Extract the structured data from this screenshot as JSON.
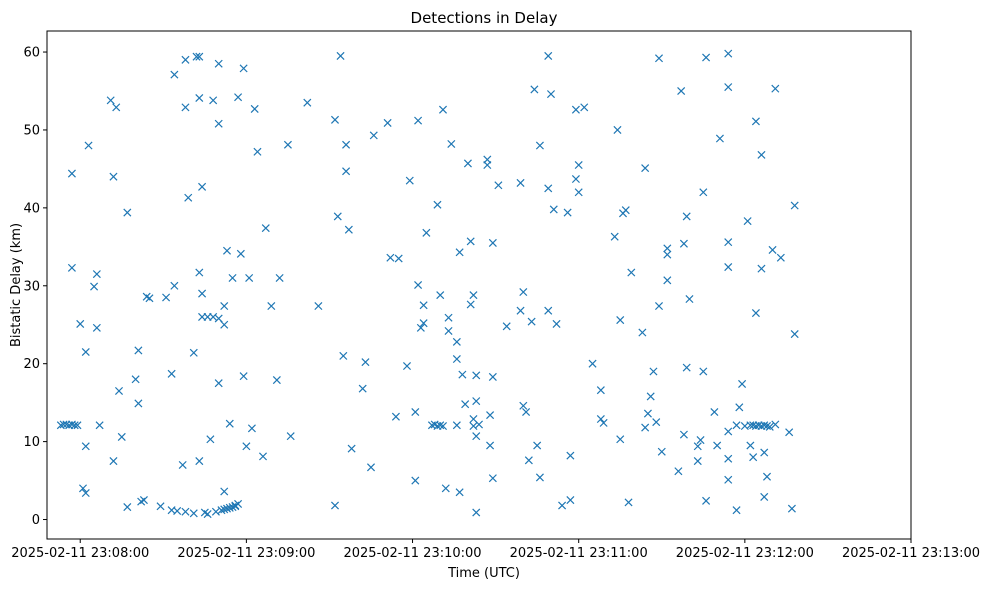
{
  "chart_data": {
    "type": "scatter",
    "title": "Detections in Delay",
    "xlabel": "Time (UTC)",
    "ylabel": "Bistatic Delay (km)",
    "marker": "x",
    "color": "#1f77b4",
    "grid": false,
    "legend": "none",
    "xlim": [
      "2025-02-11 23:07:48",
      "2025-02-11 23:13:00"
    ],
    "ylim": [
      -2.5,
      62.7
    ],
    "xticks": [
      "2025-02-11 23:08:00",
      "2025-02-11 23:09:00",
      "2025-02-11 23:10:00",
      "2025-02-11 23:11:00",
      "2025-02-11 23:12:00",
      "2025-02-11 23:13:00"
    ],
    "yticks": [
      0,
      10,
      20,
      30,
      40,
      50,
      60
    ],
    "points": [
      [
        "2025-02-11 23:07:53",
        12.1
      ],
      [
        "2025-02-11 23:07:54",
        12.2
      ],
      [
        "2025-02-11 23:07:55",
        12.2
      ],
      [
        "2025-02-11 23:07:56",
        12.1
      ],
      [
        "2025-02-11 23:07:57",
        12.2
      ],
      [
        "2025-02-11 23:07:58",
        12.1
      ],
      [
        "2025-02-11 23:07:59",
        12.1
      ],
      [
        "2025-02-11 23:07:57",
        44.4
      ],
      [
        "2025-02-11 23:07:57",
        32.3
      ],
      [
        "2025-02-11 23:08:00",
        25.1
      ],
      [
        "2025-02-11 23:08:01",
        4.0
      ],
      [
        "2025-02-11 23:08:02",
        3.4
      ],
      [
        "2025-02-11 23:08:02",
        21.5
      ],
      [
        "2025-02-11 23:08:02",
        9.4
      ],
      [
        "2025-02-11 23:08:03",
        48.0
      ],
      [
        "2025-02-11 23:08:05",
        29.9
      ],
      [
        "2025-02-11 23:08:06",
        31.5
      ],
      [
        "2025-02-11 23:08:06",
        24.6
      ],
      [
        "2025-02-11 23:08:07",
        12.1
      ],
      [
        "2025-02-11 23:08:11",
        53.8
      ],
      [
        "2025-02-11 23:08:12",
        44.0
      ],
      [
        "2025-02-11 23:08:12",
        7.5
      ],
      [
        "2025-02-11 23:08:13",
        52.9
      ],
      [
        "2025-02-11 23:08:14",
        16.5
      ],
      [
        "2025-02-11 23:08:15",
        10.6
      ],
      [
        "2025-02-11 23:08:17",
        39.4
      ],
      [
        "2025-02-11 23:08:17",
        1.6
      ],
      [
        "2025-02-11 23:08:20",
        18.0
      ],
      [
        "2025-02-11 23:08:21",
        21.7
      ],
      [
        "2025-02-11 23:08:21",
        14.9
      ],
      [
        "2025-02-11 23:08:22",
        2.3
      ],
      [
        "2025-02-11 23:08:23",
        2.5
      ],
      [
        "2025-02-11 23:08:24",
        28.6
      ],
      [
        "2025-02-11 23:08:25",
        28.4
      ],
      [
        "2025-02-11 23:08:29",
        1.7
      ],
      [
        "2025-02-11 23:08:31",
        28.5
      ],
      [
        "2025-02-11 23:08:33",
        1.2
      ],
      [
        "2025-02-11 23:08:33",
        18.7
      ],
      [
        "2025-02-11 23:08:34",
        57.1
      ],
      [
        "2025-02-11 23:08:34",
        30.0
      ],
      [
        "2025-02-11 23:08:35",
        1.1
      ],
      [
        "2025-02-11 23:08:37",
        7.0
      ],
      [
        "2025-02-11 23:08:38",
        1.0
      ],
      [
        "2025-02-11 23:08:38",
        59.0
      ],
      [
        "2025-02-11 23:08:38",
        52.9
      ],
      [
        "2025-02-11 23:08:39",
        41.3
      ],
      [
        "2025-02-11 23:08:41",
        0.8
      ],
      [
        "2025-02-11 23:08:41",
        21.4
      ],
      [
        "2025-02-11 23:08:42",
        59.4
      ],
      [
        "2025-02-11 23:08:43",
        59.4
      ],
      [
        "2025-02-11 23:08:43",
        54.1
      ],
      [
        "2025-02-11 23:08:43",
        31.7
      ],
      [
        "2025-02-11 23:08:43",
        7.5
      ],
      [
        "2025-02-11 23:08:44",
        42.7
      ],
      [
        "2025-02-11 23:08:44",
        26.0
      ],
      [
        "2025-02-11 23:08:44",
        29.0
      ],
      [
        "2025-02-11 23:08:45",
        0.9
      ],
      [
        "2025-02-11 23:08:46",
        26.0
      ],
      [
        "2025-02-11 23:08:46",
        0.7
      ],
      [
        "2025-02-11 23:08:47",
        10.3
      ],
      [
        "2025-02-11 23:08:48",
        26.0
      ],
      [
        "2025-02-11 23:08:48",
        53.8
      ],
      [
        "2025-02-11 23:08:49",
        1.0
      ],
      [
        "2025-02-11 23:08:50",
        58.5
      ],
      [
        "2025-02-11 23:08:50",
        17.5
      ],
      [
        "2025-02-11 23:08:50",
        50.8
      ],
      [
        "2025-02-11 23:08:50",
        25.8
      ],
      [
        "2025-02-11 23:08:51",
        1.2
      ],
      [
        "2025-02-11 23:08:52",
        1.3
      ],
      [
        "2025-02-11 23:08:52",
        27.4
      ],
      [
        "2025-02-11 23:08:52",
        3.6
      ],
      [
        "2025-02-11 23:08:52",
        25.0
      ],
      [
        "2025-02-11 23:08:53",
        1.4
      ],
      [
        "2025-02-11 23:08:53",
        34.5
      ],
      [
        "2025-02-11 23:08:54",
        1.5
      ],
      [
        "2025-02-11 23:08:54",
        12.3
      ],
      [
        "2025-02-11 23:08:55",
        1.6
      ],
      [
        "2025-02-11 23:08:55",
        31.0
      ],
      [
        "2025-02-11 23:08:56",
        1.7
      ],
      [
        "2025-02-11 23:08:56",
        1.8
      ],
      [
        "2025-02-11 23:08:57",
        2.0
      ],
      [
        "2025-02-11 23:08:57",
        54.2
      ],
      [
        "2025-02-11 23:08:58",
        34.1
      ],
      [
        "2025-02-11 23:08:59",
        57.9
      ],
      [
        "2025-02-11 23:08:59",
        18.4
      ],
      [
        "2025-02-11 23:09:00",
        9.4
      ],
      [
        "2025-02-11 23:09:01",
        31.0
      ],
      [
        "2025-02-11 23:09:02",
        11.7
      ],
      [
        "2025-02-11 23:09:03",
        52.7
      ],
      [
        "2025-02-11 23:09:04",
        47.2
      ],
      [
        "2025-02-11 23:09:06",
        8.1
      ],
      [
        "2025-02-11 23:09:07",
        37.4
      ],
      [
        "2025-02-11 23:09:09",
        27.4
      ],
      [
        "2025-02-11 23:09:11",
        17.9
      ],
      [
        "2025-02-11 23:09:12",
        31.0
      ],
      [
        "2025-02-11 23:09:15",
        48.1
      ],
      [
        "2025-02-11 23:09:16",
        10.7
      ],
      [
        "2025-02-11 23:09:22",
        53.5
      ],
      [
        "2025-02-11 23:09:26",
        27.4
      ],
      [
        "2025-02-11 23:09:32",
        1.8
      ],
      [
        "2025-02-11 23:09:32",
        51.3
      ],
      [
        "2025-02-11 23:09:33",
        38.9
      ],
      [
        "2025-02-11 23:09:34",
        59.5
      ],
      [
        "2025-02-11 23:09:35",
        21.0
      ],
      [
        "2025-02-11 23:09:36",
        48.1
      ],
      [
        "2025-02-11 23:09:36",
        44.7
      ],
      [
        "2025-02-11 23:09:37",
        37.2
      ],
      [
        "2025-02-11 23:09:38",
        9.1
      ],
      [
        "2025-02-11 23:09:42",
        16.8
      ],
      [
        "2025-02-11 23:09:43",
        20.2
      ],
      [
        "2025-02-11 23:09:45",
        6.7
      ],
      [
        "2025-02-11 23:09:46",
        49.3
      ],
      [
        "2025-02-11 23:09:51",
        50.9
      ],
      [
        "2025-02-11 23:09:52",
        33.6
      ],
      [
        "2025-02-11 23:09:54",
        13.2
      ],
      [
        "2025-02-11 23:09:55",
        33.5
      ],
      [
        "2025-02-11 23:09:58",
        19.7
      ],
      [
        "2025-02-11 23:09:59",
        43.5
      ],
      [
        "2025-02-11 23:10:01",
        13.8
      ],
      [
        "2025-02-11 23:10:01",
        5.0
      ],
      [
        "2025-02-11 23:10:02",
        51.2
      ],
      [
        "2025-02-11 23:10:02",
        30.1
      ],
      [
        "2025-02-11 23:10:03",
        24.6
      ],
      [
        "2025-02-11 23:10:04",
        25.2
      ],
      [
        "2025-02-11 23:10:04",
        27.5
      ],
      [
        "2025-02-11 23:10:05",
        36.8
      ],
      [
        "2025-02-11 23:10:07",
        12.1
      ],
      [
        "2025-02-11 23:10:08",
        12.2
      ],
      [
        "2025-02-11 23:10:09",
        40.4
      ],
      [
        "2025-02-11 23:10:09",
        12.0
      ],
      [
        "2025-02-11 23:10:10",
        28.8
      ],
      [
        "2025-02-11 23:10:10",
        12.1
      ],
      [
        "2025-02-11 23:10:11",
        12.0
      ],
      [
        "2025-02-11 23:10:11",
        52.6
      ],
      [
        "2025-02-11 23:10:12",
        4.0
      ],
      [
        "2025-02-11 23:10:13",
        25.9
      ],
      [
        "2025-02-11 23:10:13",
        24.2
      ],
      [
        "2025-02-11 23:10:14",
        48.2
      ],
      [
        "2025-02-11 23:10:16",
        12.1
      ],
      [
        "2025-02-11 23:10:16",
        22.8
      ],
      [
        "2025-02-11 23:10:16",
        20.6
      ],
      [
        "2025-02-11 23:10:17",
        34.3
      ],
      [
        "2025-02-11 23:10:17",
        3.5
      ],
      [
        "2025-02-11 23:10:18",
        18.6
      ],
      [
        "2025-02-11 23:10:19",
        14.8
      ],
      [
        "2025-02-11 23:10:20",
        45.7
      ],
      [
        "2025-02-11 23:10:21",
        27.6
      ],
      [
        "2025-02-11 23:10:21",
        35.7
      ],
      [
        "2025-02-11 23:10:22",
        12.9
      ],
      [
        "2025-02-11 23:10:22",
        28.8
      ],
      [
        "2025-02-11 23:10:22",
        12.0
      ],
      [
        "2025-02-11 23:10:23",
        15.2
      ],
      [
        "2025-02-11 23:10:23",
        10.7
      ],
      [
        "2025-02-11 23:10:23",
        0.9
      ],
      [
        "2025-02-11 23:10:23",
        18.5
      ],
      [
        "2025-02-11 23:10:24",
        12.2
      ],
      [
        "2025-02-11 23:10:27",
        46.2
      ],
      [
        "2025-02-11 23:10:27",
        45.5
      ],
      [
        "2025-02-11 23:10:28",
        9.5
      ],
      [
        "2025-02-11 23:10:28",
        13.4
      ],
      [
        "2025-02-11 23:10:29",
        5.3
      ],
      [
        "2025-02-11 23:10:29",
        35.5
      ],
      [
        "2025-02-11 23:10:29",
        18.3
      ],
      [
        "2025-02-11 23:10:31",
        42.9
      ],
      [
        "2025-02-11 23:10:34",
        24.8
      ],
      [
        "2025-02-11 23:10:39",
        43.2
      ],
      [
        "2025-02-11 23:10:39",
        26.8
      ],
      [
        "2025-02-11 23:10:40",
        29.2
      ],
      [
        "2025-02-11 23:10:40",
        14.6
      ],
      [
        "2025-02-11 23:10:41",
        13.8
      ],
      [
        "2025-02-11 23:10:42",
        7.6
      ],
      [
        "2025-02-11 23:10:43",
        25.4
      ],
      [
        "2025-02-11 23:10:44",
        55.2
      ],
      [
        "2025-02-11 23:10:45",
        9.5
      ],
      [
        "2025-02-11 23:10:46",
        5.4
      ],
      [
        "2025-02-11 23:10:46",
        48.0
      ],
      [
        "2025-02-11 23:10:49",
        42.5
      ],
      [
        "2025-02-11 23:10:49",
        59.5
      ],
      [
        "2025-02-11 23:10:49",
        26.8
      ],
      [
        "2025-02-11 23:10:50",
        54.6
      ],
      [
        "2025-02-11 23:10:51",
        39.8
      ],
      [
        "2025-02-11 23:10:52",
        25.1
      ],
      [
        "2025-02-11 23:10:54",
        1.8
      ],
      [
        "2025-02-11 23:10:56",
        39.4
      ],
      [
        "2025-02-11 23:10:57",
        8.2
      ],
      [
        "2025-02-11 23:10:57",
        2.5
      ],
      [
        "2025-02-11 23:10:59",
        52.6
      ],
      [
        "2025-02-11 23:10:59",
        43.7
      ],
      [
        "2025-02-11 23:11:00",
        42.0
      ],
      [
        "2025-02-11 23:11:00",
        45.5
      ],
      [
        "2025-02-11 23:11:02",
        52.9
      ],
      [
        "2025-02-11 23:11:05",
        20.0
      ],
      [
        "2025-02-11 23:11:08",
        16.6
      ],
      [
        "2025-02-11 23:11:08",
        12.9
      ],
      [
        "2025-02-11 23:11:09",
        12.4
      ],
      [
        "2025-02-11 23:11:13",
        36.3
      ],
      [
        "2025-02-11 23:11:14",
        50.0
      ],
      [
        "2025-02-11 23:11:15",
        10.3
      ],
      [
        "2025-02-11 23:11:15",
        25.6
      ],
      [
        "2025-02-11 23:11:16",
        39.3
      ],
      [
        "2025-02-11 23:11:17",
        39.7
      ],
      [
        "2025-02-11 23:11:18",
        2.2
      ],
      [
        "2025-02-11 23:11:19",
        31.7
      ],
      [
        "2025-02-11 23:11:23",
        24.0
      ],
      [
        "2025-02-11 23:11:24",
        45.1
      ],
      [
        "2025-02-11 23:11:24",
        11.8
      ],
      [
        "2025-02-11 23:11:25",
        13.6
      ],
      [
        "2025-02-11 23:11:26",
        15.8
      ],
      [
        "2025-02-11 23:11:27",
        19.0
      ],
      [
        "2025-02-11 23:11:28",
        12.5
      ],
      [
        "2025-02-11 23:11:29",
        27.4
      ],
      [
        "2025-02-11 23:11:29",
        59.2
      ],
      [
        "2025-02-11 23:11:30",
        8.7
      ],
      [
        "2025-02-11 23:11:32",
        34.0
      ],
      [
        "2025-02-11 23:11:32",
        34.8
      ],
      [
        "2025-02-11 23:11:32",
        30.7
      ],
      [
        "2025-02-11 23:11:36",
        6.2
      ],
      [
        "2025-02-11 23:11:37",
        55.0
      ],
      [
        "2025-02-11 23:11:38",
        35.4
      ],
      [
        "2025-02-11 23:11:38",
        10.9
      ],
      [
        "2025-02-11 23:11:39",
        38.9
      ],
      [
        "2025-02-11 23:11:39",
        19.5
      ],
      [
        "2025-02-11 23:11:40",
        28.3
      ],
      [
        "2025-02-11 23:11:43",
        9.4
      ],
      [
        "2025-02-11 23:11:43",
        7.5
      ],
      [
        "2025-02-11 23:11:44",
        10.2
      ],
      [
        "2025-02-11 23:11:45",
        19.0
      ],
      [
        "2025-02-11 23:11:45",
        42.0
      ],
      [
        "2025-02-11 23:11:46",
        59.3
      ],
      [
        "2025-02-11 23:11:46",
        2.4
      ],
      [
        "2025-02-11 23:11:49",
        13.8
      ],
      [
        "2025-02-11 23:11:50",
        9.5
      ],
      [
        "2025-02-11 23:11:51",
        48.9
      ],
      [
        "2025-02-11 23:11:54",
        35.6
      ],
      [
        "2025-02-11 23:11:54",
        55.5
      ],
      [
        "2025-02-11 23:11:54",
        59.8
      ],
      [
        "2025-02-11 23:11:54",
        32.4
      ],
      [
        "2025-02-11 23:11:54",
        11.3
      ],
      [
        "2025-02-11 23:11:54",
        7.8
      ],
      [
        "2025-02-11 23:11:54",
        5.1
      ],
      [
        "2025-02-11 23:11:57",
        12.1
      ],
      [
        "2025-02-11 23:11:57",
        1.2
      ],
      [
        "2025-02-11 23:11:58",
        14.4
      ],
      [
        "2025-02-11 23:11:59",
        17.4
      ],
      [
        "2025-02-11 23:12:00",
        12.0
      ],
      [
        "2025-02-11 23:12:01",
        38.3
      ],
      [
        "2025-02-11 23:12:02",
        12.1
      ],
      [
        "2025-02-11 23:12:02",
        9.5
      ],
      [
        "2025-02-11 23:12:03",
        8.0
      ],
      [
        "2025-02-11 23:12:03",
        12.1
      ],
      [
        "2025-02-11 23:12:04",
        12.0
      ],
      [
        "2025-02-11 23:12:04",
        51.1
      ],
      [
        "2025-02-11 23:12:04",
        26.5
      ],
      [
        "2025-02-11 23:12:05",
        12.1
      ],
      [
        "2025-02-11 23:12:06",
        32.2
      ],
      [
        "2025-02-11 23:12:06",
        12.0
      ],
      [
        "2025-02-11 23:12:06",
        46.8
      ],
      [
        "2025-02-11 23:12:07",
        12.1
      ],
      [
        "2025-02-11 23:12:07",
        2.9
      ],
      [
        "2025-02-11 23:12:07",
        8.6
      ],
      [
        "2025-02-11 23:12:08",
        12.0
      ],
      [
        "2025-02-11 23:12:08",
        5.5
      ],
      [
        "2025-02-11 23:12:09",
        11.9
      ],
      [
        "2025-02-11 23:12:10",
        34.6
      ],
      [
        "2025-02-11 23:12:11",
        12.2
      ],
      [
        "2025-02-11 23:12:11",
        55.3
      ],
      [
        "2025-02-11 23:12:13",
        33.6
      ],
      [
        "2025-02-11 23:12:16",
        11.2
      ],
      [
        "2025-02-11 23:12:17",
        1.4
      ],
      [
        "2025-02-11 23:12:18",
        40.3
      ],
      [
        "2025-02-11 23:12:18",
        23.8
      ]
    ]
  }
}
